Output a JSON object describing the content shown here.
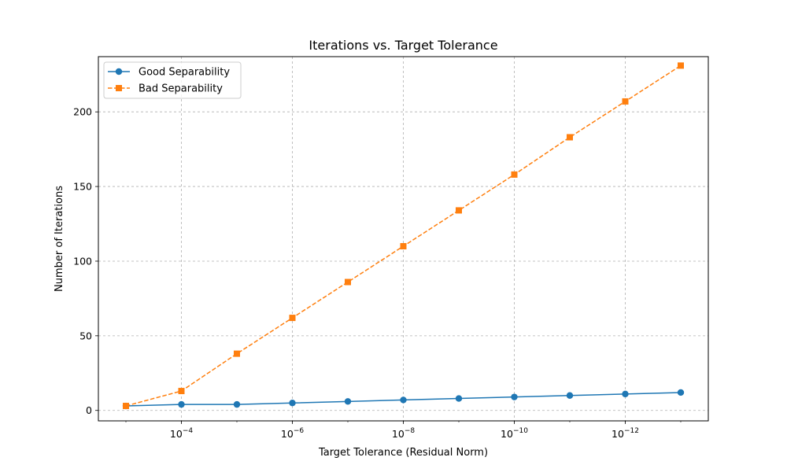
{
  "chart_data": {
    "type": "line",
    "title": "Iterations vs. Target Tolerance",
    "xlabel": "Target Tolerance (Residual Norm)",
    "ylabel": "Number of Iterations",
    "x_scale": "log",
    "x_reversed": true,
    "x": [
      0.001,
      0.0001,
      1e-05,
      1e-06,
      1e-07,
      1e-08,
      1e-09,
      1e-10,
      1e-11,
      1e-12,
      1e-13
    ],
    "xticks": [
      {
        "value": 0.0001,
        "base": "10",
        "exp": "−4"
      },
      {
        "value": 1e-06,
        "base": "10",
        "exp": "−6"
      },
      {
        "value": 1e-08,
        "base": "10",
        "exp": "−8"
      },
      {
        "value": 1e-10,
        "base": "10",
        "exp": "−10"
      },
      {
        "value": 1e-12,
        "base": "10",
        "exp": "−12"
      }
    ],
    "yticks": [
      "0",
      "50",
      "100",
      "150",
      "200"
    ],
    "ylim": [
      -7,
      237
    ],
    "grid": true,
    "legend_position": "upper-left",
    "series": [
      {
        "name": "Good Separability",
        "color": "#1f77b4",
        "marker": "circle",
        "linestyle": "solid",
        "values": [
          3,
          4,
          4,
          5,
          6,
          7,
          8,
          9,
          10,
          11,
          12
        ]
      },
      {
        "name": "Bad Separability",
        "color": "#ff7f0e",
        "marker": "square",
        "linestyle": "dashed",
        "values": [
          3,
          13,
          38,
          62,
          86,
          110,
          134,
          158,
          183,
          207,
          231
        ]
      }
    ]
  }
}
